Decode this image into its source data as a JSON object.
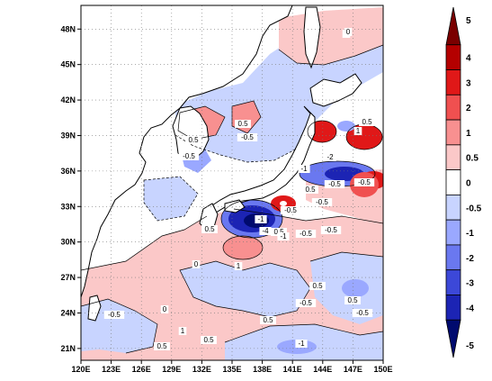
{
  "map": {
    "lon_ticks": [
      "120E",
      "123E",
      "126E",
      "129E",
      "132E",
      "135E",
      "138E",
      "141E",
      "144E",
      "147E",
      "150E"
    ],
    "lat_ticks": [
      "48N",
      "45N",
      "42N",
      "39N",
      "36N",
      "33N",
      "30N",
      "27N",
      "24N",
      "21N"
    ],
    "contour_labels": [
      {
        "text": "0"
      },
      {
        "text": "0.5"
      },
      {
        "text": "0.5"
      },
      {
        "text": "-0.5"
      },
      {
        "text": "-0.5"
      },
      {
        "text": "-2"
      },
      {
        "text": "-0.5"
      },
      {
        "text": "-0.5"
      },
      {
        "text": "0.5"
      },
      {
        "text": "-0.5"
      },
      {
        "text": "-1"
      },
      {
        "text": "0.5"
      },
      {
        "text": "-4"
      },
      {
        "text": "-1"
      },
      {
        "text": "0.5"
      },
      {
        "text": "-0.5"
      },
      {
        "text": "-0.5"
      },
      {
        "text": "0.5"
      },
      {
        "text": "1"
      },
      {
        "text": "0"
      },
      {
        "text": "-0.5"
      },
      {
        "text": "0"
      },
      {
        "text": "1"
      },
      {
        "text": "0.5"
      },
      {
        "text": "0.5"
      },
      {
        "text": "-0.5"
      },
      {
        "text": "-0.5"
      },
      {
        "text": "0.5"
      },
      {
        "text": "0.5"
      },
      {
        "text": "-1"
      },
      {
        "text": "-0.5"
      },
      {
        "text": "0"
      },
      {
        "text": "0.5"
      },
      {
        "text": "1"
      },
      {
        "text": "-1"
      }
    ]
  },
  "colorbar": {
    "labels": [
      "5",
      "4",
      "3",
      "2",
      "1",
      "0.5",
      "0",
      "-0.5",
      "-1",
      "-2",
      "-3",
      "-4",
      "-5"
    ],
    "colors": [
      "#7a0000",
      "#b40000",
      "#e01818",
      "#f05050",
      "#f89090",
      "#fbc8c8",
      "#ffffff",
      "#c8d4ff",
      "#9aa8ff",
      "#6a78f0",
      "#3c48d8",
      "#1c24b4",
      "#000a6e"
    ]
  }
}
